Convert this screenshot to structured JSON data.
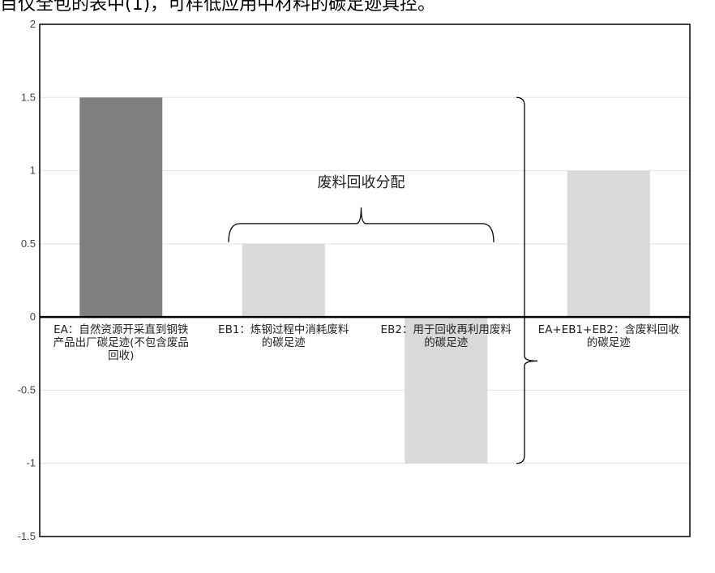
{
  "header_text": "目仅全包的表中(1)，可样低应用中材料的碳足迹具控。",
  "chart_data": {
    "type": "bar",
    "title": "",
    "xlabel": "",
    "ylabel": "",
    "ylim": [
      -1.5,
      2
    ],
    "yticks": [
      2,
      1.5,
      1,
      0.5,
      0,
      -0.5,
      -1,
      -1.5
    ],
    "ytick_labels": [
      "2",
      "1.5",
      "1",
      "0.5",
      "0",
      "-0.5",
      "-1",
      "-1.5"
    ],
    "grid": true,
    "categories": [
      [
        "EA：自然资源开采直到钢铁",
        "产品出厂碳足迹(不包含废品",
        "回收)"
      ],
      [
        "EB1：炼钢过程中消耗废料",
        "的碳足迹"
      ],
      [
        "EB2：用于回收再利用废料",
        "的碳足迹"
      ],
      [
        "EA+EB1+EB2：含废料回收",
        "的碳足迹"
      ]
    ],
    "values": [
      1.5,
      0.5,
      -1,
      1
    ],
    "colors": [
      "#7f7f7f",
      "#d9d9d9",
      "#d9d9d9",
      "#d9d9d9"
    ],
    "annotations": {
      "brace_label": "废料回收分配"
    }
  }
}
